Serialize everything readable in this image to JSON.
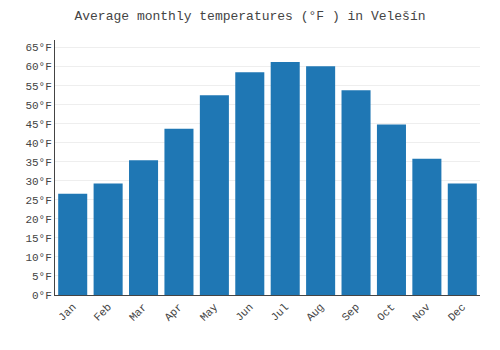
{
  "chart_data": {
    "type": "bar",
    "title": "Average monthly temperatures (°F ) in Velešín",
    "categories": [
      "Jan",
      "Feb",
      "Mar",
      "Apr",
      "May",
      "Jun",
      "Jul",
      "Aug",
      "Sep",
      "Oct",
      "Nov",
      "Dec"
    ],
    "values": [
      26.6,
      29.3,
      35.4,
      43.7,
      52.5,
      58.5,
      61.2,
      60.1,
      53.8,
      44.8,
      35.8,
      29.3
    ],
    "ylim": [
      0,
      67
    ],
    "yticks": [
      {
        "value": 0,
        "label": "0°F"
      },
      {
        "value": 5,
        "label": "5°F"
      },
      {
        "value": 10,
        "label": "10°F"
      },
      {
        "value": 15,
        "label": "15°F"
      },
      {
        "value": 20,
        "label": "20°F"
      },
      {
        "value": 25,
        "label": "25°F"
      },
      {
        "value": 30,
        "label": "30°F"
      },
      {
        "value": 35,
        "label": "35°F"
      },
      {
        "value": 40,
        "label": "40°F"
      },
      {
        "value": 45,
        "label": "45°F"
      },
      {
        "value": 50,
        "label": "50°F"
      },
      {
        "value": 55,
        "label": "55°F"
      },
      {
        "value": 60,
        "label": "60°F"
      },
      {
        "value": 65,
        "label": "65°F"
      }
    ],
    "grid": true
  }
}
